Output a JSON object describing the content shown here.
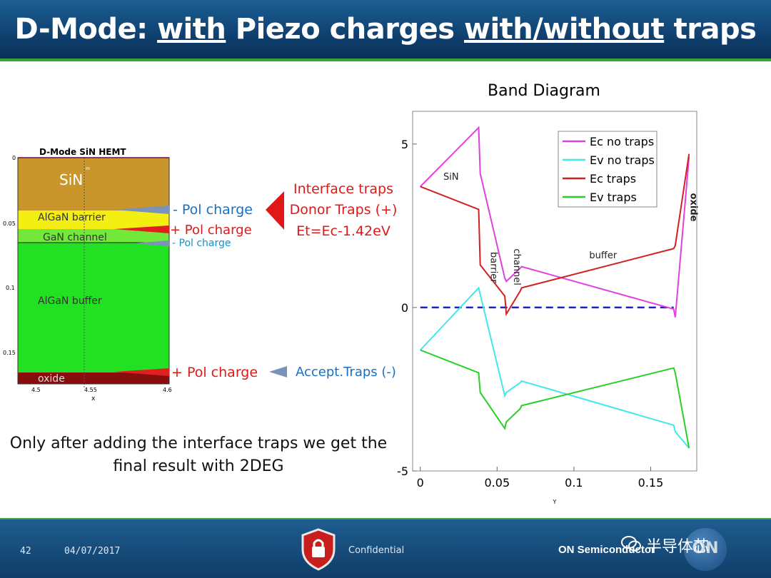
{
  "slide": {
    "title_parts": [
      "D-Mode: ",
      "with",
      " Piezo charges ",
      "with/without",
      " traps"
    ],
    "note_line1": "Only after adding the interface traps we get the",
    "note_line2": "final result with 2DEG",
    "footer": {
      "page": "42",
      "date": "04/07/2017",
      "confidential": "Confidential",
      "brand": "ON Semiconductor",
      "logo": "ON",
      "watermark": "半导体芯",
      "watermark_icon": "wechat-icon"
    }
  },
  "device": {
    "title": "D-Mode SiN HEMT",
    "xlabel": "x",
    "x_ticks": [
      "4.5",
      "4.55",
      "4.6"
    ],
    "y_ticks": [
      "0",
      "0.05",
      "0.1",
      "0.15"
    ],
    "top_tick_mark": "m",
    "layers": [
      {
        "name": "SiN",
        "color": "#c8962a"
      },
      {
        "name": "AlGaN barrier",
        "color": "#f4ef12"
      },
      {
        "name": "GaN channel",
        "color": "#72e83a"
      },
      {
        "name": "AlGaN buffer",
        "color": "#22e022"
      },
      {
        "name": "oxide",
        "color": "#8a0d0d"
      }
    ],
    "annotations": {
      "pol_minus_1": "- Pol charge",
      "pol_plus_1": "+ Pol charge",
      "pol_minus_2": "- Pol charge",
      "pol_plus_2": "+ Pol charge",
      "interface_line1": "Interface traps",
      "interface_line2": "Donor Traps (+)",
      "interface_line3": "Et=Ec-1.42eV",
      "accept_traps": "Accept.Traps (-)"
    }
  },
  "chart_data": {
    "type": "line",
    "title": "Band Diagram",
    "xlabel": "Y",
    "ylabel": "",
    "xlim": [
      -0.005,
      0.18
    ],
    "ylim": [
      -5,
      6
    ],
    "x_ticks": [
      0,
      0.05,
      0.1,
      0.15
    ],
    "x_tick_labels": [
      "0",
      "0.05",
      "0.1",
      "0.15"
    ],
    "y_ticks": [
      -5,
      0,
      5
    ],
    "y_tick_labels": [
      "-5",
      "0",
      "5"
    ],
    "legend_position": "top-right",
    "grid": false,
    "series": [
      {
        "name": "Ec no traps",
        "color": "#e040e0",
        "x": [
          0,
          0.038,
          0.039,
          0.055,
          0.056,
          0.065,
          0.066,
          0.165,
          0.166,
          0.175
        ],
        "y": [
          3.7,
          5.5,
          4.1,
          0.9,
          0.8,
          1.2,
          1.25,
          -0.05,
          -0.3,
          4.6
        ]
      },
      {
        "name": "Ev no traps",
        "color": "#40e8e8",
        "x": [
          0,
          0.038,
          0.039,
          0.055,
          0.056,
          0.065,
          0.066,
          0.165,
          0.166,
          0.175
        ],
        "y": [
          -1.3,
          0.6,
          0.4,
          -2.7,
          -2.6,
          -2.3,
          -2.25,
          -3.6,
          -3.8,
          -4.3
        ]
      },
      {
        "name": "Ec traps",
        "color": "#d22020",
        "x": [
          0,
          0.038,
          0.039,
          0.055,
          0.056,
          0.065,
          0.066,
          0.165,
          0.166,
          0.175
        ],
        "y": [
          3.7,
          3.0,
          1.3,
          0.35,
          -0.2,
          0.5,
          0.6,
          1.8,
          1.9,
          4.7
        ]
      },
      {
        "name": "Ev traps",
        "color": "#28d028",
        "x": [
          0,
          0.038,
          0.039,
          0.055,
          0.056,
          0.065,
          0.066,
          0.165,
          0.166,
          0.175
        ],
        "y": [
          -1.3,
          -2.0,
          -2.6,
          -3.7,
          -3.5,
          -3.1,
          -3.0,
          -1.85,
          -2.0,
          -4.3
        ]
      }
    ],
    "fermi_level": 0,
    "region_labels": [
      "SiN",
      "barrier",
      "channel",
      "buffer",
      "oxide"
    ],
    "region_label_data": [
      {
        "text": "SiN",
        "x": 0.015,
        "y": 3.9,
        "rotate": false,
        "bold": false
      },
      {
        "text": "barrier",
        "x": 0.046,
        "y": 1.7,
        "rotate": true,
        "bold": false
      },
      {
        "text": "channel",
        "x": 0.061,
        "y": 1.8,
        "rotate": true,
        "bold": false
      },
      {
        "text": "buffer",
        "x": 0.11,
        "y": 1.5,
        "rotate": false,
        "bold": false
      },
      {
        "text": "oxide",
        "x": 0.176,
        "y": 3.5,
        "rotate": true,
        "bold": true
      }
    ]
  }
}
